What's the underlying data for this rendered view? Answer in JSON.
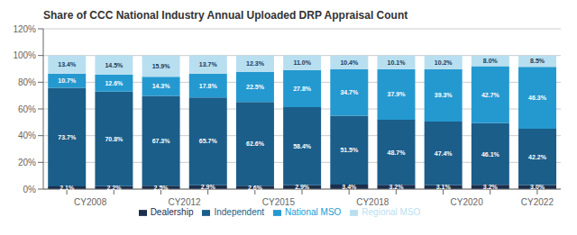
{
  "chart_data": {
    "type": "bar",
    "title": "Share of CCC National  Industry Annual Uploaded DRP Appraisal Count",
    "categories": [
      "CY2008",
      null,
      "CY2012",
      null,
      "CY2015",
      null,
      "CY2018",
      null,
      "CY2020",
      null,
      "CY2022"
    ],
    "series": [
      {
        "name": "Dealership",
        "color": "#1b2e4b",
        "values": [
          2.1,
          2.2,
          2.5,
          2.9,
          2.6,
          2.9,
          3.4,
          3.2,
          3.1,
          3.2,
          3.0
        ],
        "value_labels": [
          "2.1%",
          "2.2%",
          "2.5%",
          "2.9%",
          "2.6%",
          "2.9%",
          "3.4%",
          "3.2%",
          "3.1%",
          "3.2%",
          "3.0%"
        ]
      },
      {
        "name": "Independent",
        "color": "#1b5e8a",
        "values": [
          73.7,
          70.8,
          67.3,
          65.7,
          62.6,
          58.4,
          51.5,
          48.7,
          47.4,
          46.1,
          42.2
        ],
        "value_labels": [
          "73.7%",
          "70.8%",
          "67.3%",
          "65.7%",
          "62.6%",
          "58.4%",
          "51.5%",
          "48.7%",
          "47.4%",
          "46.1%",
          "42.2%"
        ]
      },
      {
        "name": "National MSO",
        "color": "#2499d0",
        "values": [
          10.7,
          12.6,
          14.3,
          17.8,
          22.5,
          27.8,
          34.7,
          37.9,
          39.3,
          42.7,
          46.3
        ],
        "value_labels": [
          "10.7%",
          "12.6%",
          "14.3%",
          "17.8%",
          "22.5%",
          "27.8%",
          "34.7%",
          "37.9%",
          "39.3%",
          "42.7%",
          "46.3%"
        ]
      },
      {
        "name": "Regional MSO",
        "color": "#b8dff0",
        "values": [
          13.4,
          14.5,
          15.9,
          13.7,
          12.3,
          11.0,
          10.4,
          10.1,
          10.2,
          8.0,
          8.5
        ],
        "value_labels": [
          "13.4%",
          "14.5%",
          "15.9%",
          "13.7%",
          "12.3%",
          "11.0%",
          "10.4%",
          "10.1%",
          "10.2%",
          "8.0%",
          "8.5%"
        ]
      }
    ],
    "ylim": [
      0,
      120
    ],
    "yticks": [
      {
        "value": 0,
        "label": "0%"
      },
      {
        "value": 20,
        "label": "20%"
      },
      {
        "value": 40,
        "label": "40%"
      },
      {
        "value": 60,
        "label": "60%"
      },
      {
        "value": 80,
        "label": "80%"
      },
      {
        "value": 100,
        "label": "100%"
      },
      {
        "value": 120,
        "label": "120%"
      }
    ],
    "grid": true,
    "stacked": true,
    "data_labels": true,
    "legend": "bottom"
  }
}
